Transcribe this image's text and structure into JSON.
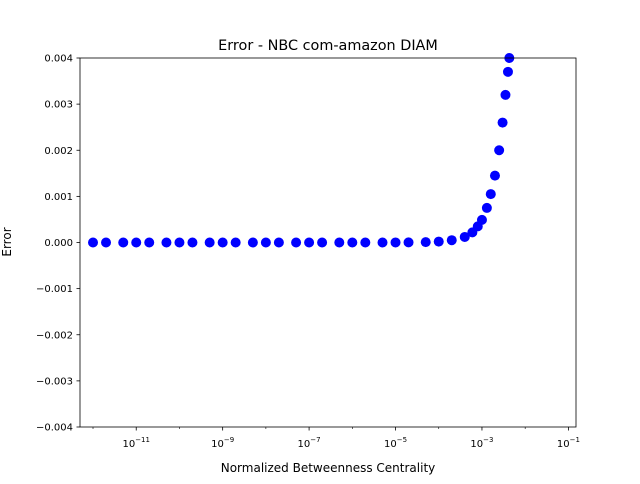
{
  "chart_data": {
    "type": "scatter",
    "title": "Error - NBC com-amazon DIAM",
    "xlabel": "Normalized Betweenness Centrality",
    "ylabel": "Error",
    "xscale": "log",
    "xlim": [
      5e-13,
      0.15
    ],
    "ylim": [
      -0.004,
      0.004
    ],
    "x_ticks": [
      1e-11,
      1e-09,
      1e-07,
      1e-05,
      0.001,
      0.1
    ],
    "x_tick_labels": [
      {
        "base": "10",
        "exp": "−11"
      },
      {
        "base": "10",
        "exp": "−9"
      },
      {
        "base": "10",
        "exp": "−7"
      },
      {
        "base": "10",
        "exp": "−5"
      },
      {
        "base": "10",
        "exp": "−3"
      },
      {
        "base": "10",
        "exp": "−1"
      }
    ],
    "y_ticks": [
      -0.004,
      -0.003,
      -0.002,
      -0.001,
      0.0,
      0.001,
      0.002,
      0.003,
      0.004
    ],
    "y_tick_labels": [
      "−0.004",
      "−0.003",
      "−0.002",
      "−0.001",
      "0.000",
      "0.001",
      "0.002",
      "0.003",
      "0.004"
    ],
    "grid": false,
    "legend": "none",
    "marker_color": "#0000ff",
    "series": [
      {
        "points": [
          [
            1e-12,
            0.0
          ],
          [
            2e-12,
            0.0
          ],
          [
            5e-12,
            0.0
          ],
          [
            1e-11,
            0.0
          ],
          [
            2e-11,
            0.0
          ],
          [
            5e-11,
            0.0
          ],
          [
            1e-10,
            0.0
          ],
          [
            2e-10,
            0.0
          ],
          [
            5e-10,
            0.0
          ],
          [
            1e-09,
            0.0
          ],
          [
            2e-09,
            0.0
          ],
          [
            5e-09,
            0.0
          ],
          [
            1e-08,
            0.0
          ],
          [
            2e-08,
            0.0
          ],
          [
            5e-08,
            0.0
          ],
          [
            1e-07,
            0.0
          ],
          [
            2e-07,
            0.0
          ],
          [
            5e-07,
            0.0
          ],
          [
            1e-06,
            0.0
          ],
          [
            2e-06,
            0.0
          ],
          [
            5e-06,
            0.0
          ],
          [
            1e-05,
            1e-06
          ],
          [
            2e-05,
            3e-06
          ],
          [
            5e-05,
            8e-06
          ],
          [
            0.0001,
            2e-05
          ],
          [
            0.0002,
            5e-05
          ],
          [
            0.0004,
            0.00012
          ],
          [
            0.0006,
            0.00022
          ],
          [
            0.0008,
            0.00035
          ],
          [
            0.001,
            0.00049
          ],
          [
            0.0013,
            0.00075
          ],
          [
            0.0016,
            0.00105
          ],
          [
            0.002,
            0.00145
          ],
          [
            0.0025,
            0.002
          ],
          [
            0.003,
            0.0026
          ],
          [
            0.0035,
            0.0032
          ],
          [
            0.004,
            0.0037
          ],
          [
            0.0043,
            0.004
          ]
        ]
      }
    ]
  }
}
